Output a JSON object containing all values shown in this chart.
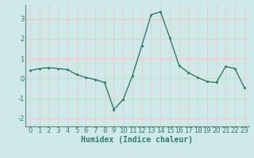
{
  "x": [
    0,
    1,
    2,
    3,
    4,
    5,
    6,
    7,
    8,
    9,
    10,
    11,
    12,
    13,
    14,
    15,
    16,
    17,
    18,
    19,
    20,
    21,
    22,
    23
  ],
  "y": [
    0.4,
    0.5,
    0.55,
    0.5,
    0.45,
    0.2,
    0.05,
    -0.05,
    -0.2,
    -1.55,
    -1.05,
    0.15,
    1.65,
    3.2,
    3.35,
    2.05,
    0.65,
    0.3,
    0.05,
    -0.15,
    -0.2,
    0.6,
    0.5,
    -0.45
  ],
  "line_color": "#2e7d6e",
  "marker": "s",
  "marker_size": 2.0,
  "line_width": 1.0,
  "xlabel": "Humidex (Indice chaleur)",
  "ylim": [
    -2.4,
    3.7
  ],
  "yticks": [
    -2,
    -1,
    0,
    1,
    2,
    3
  ],
  "xticks": [
    0,
    1,
    2,
    3,
    4,
    5,
    6,
    7,
    8,
    9,
    10,
    11,
    12,
    13,
    14,
    15,
    16,
    17,
    18,
    19,
    20,
    21,
    22,
    23
  ],
  "background_color": "#cfe8e8",
  "grid_color": "#e8c8c8",
  "tick_label_color": "#2e7d6e",
  "xlabel_color": "#2e7d6e",
  "xlabel_fontsize": 7,
  "tick_fontsize": 6
}
